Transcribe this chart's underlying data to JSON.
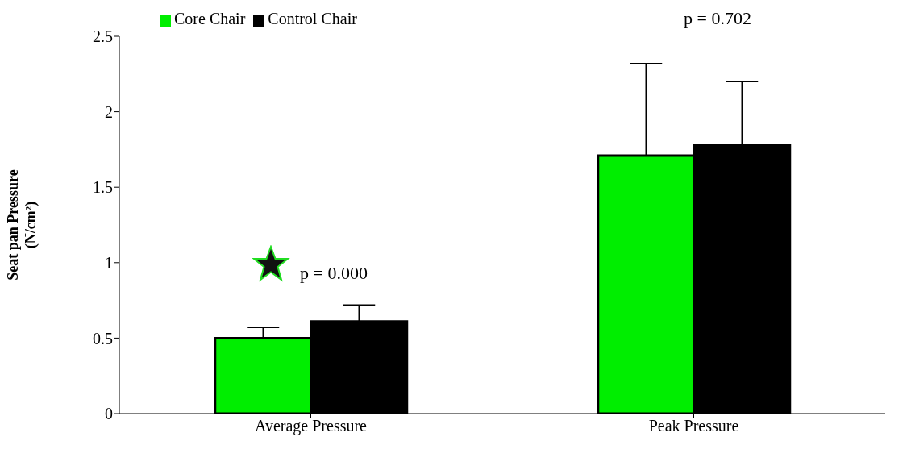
{
  "chart_data": {
    "type": "bar",
    "ylabel": "Seat pan Pressure (N/cm²)",
    "categories": [
      "Average Pressure",
      "Peak Pressure"
    ],
    "series": [
      {
        "name": "Core Chair",
        "color": "#00ee00",
        "values": [
          0.5,
          1.71
        ],
        "errors": [
          [
            0.5,
            0.57
          ],
          [
            1.71,
            2.32
          ]
        ]
      },
      {
        "name": "Control Chair",
        "color": "#000000",
        "values": [
          0.61,
          1.78
        ],
        "errors": [
          [
            0.61,
            0.72
          ],
          [
            1.78,
            2.2
          ]
        ]
      }
    ],
    "ylim": [
      0,
      2.5
    ],
    "yticks": [
      0,
      0.5,
      1,
      1.5,
      2,
      2.5
    ],
    "grid": false,
    "legend": "top left",
    "annotations": [
      "p = 0.000",
      "p = 0.702"
    ]
  }
}
